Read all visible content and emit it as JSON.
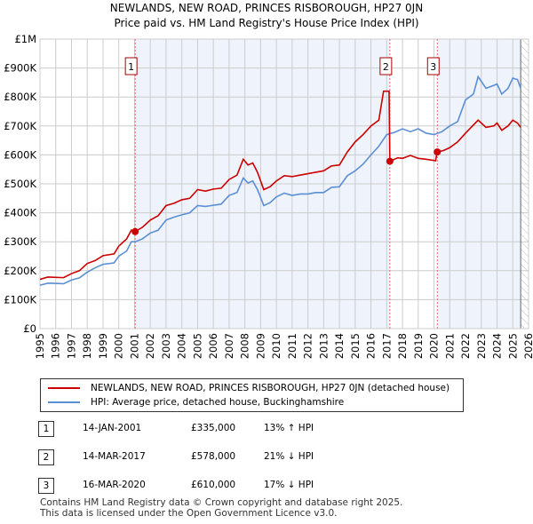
{
  "chart_data": {
    "type": "line",
    "title": "NEWLANDS, NEW ROAD, PRINCES RISBOROUGH, HP27 0JN",
    "subtitle": "Price paid vs. HM Land Registry's House Price Index (HPI)",
    "xlim": [
      1995,
      2026
    ],
    "ylim": [
      0,
      1000000
    ],
    "x_ticks": [
      "1995",
      "1996",
      "1997",
      "1998",
      "1999",
      "2000",
      "2001",
      "2002",
      "2003",
      "2004",
      "2005",
      "2006",
      "2007",
      "2008",
      "2009",
      "2010",
      "2011",
      "2012",
      "2013",
      "2014",
      "2015",
      "2016",
      "2017",
      "2018",
      "2019",
      "2020",
      "2021",
      "2022",
      "2023",
      "2024",
      "2025",
      "2026"
    ],
    "y_ticks": [
      {
        "v": 0,
        "label": "£0"
      },
      {
        "v": 100000,
        "label": "£100K"
      },
      {
        "v": 200000,
        "label": "£200K"
      },
      {
        "v": 300000,
        "label": "£300K"
      },
      {
        "v": 400000,
        "label": "£400K"
      },
      {
        "v": 500000,
        "label": "£500K"
      },
      {
        "v": 600000,
        "label": "£600K"
      },
      {
        "v": 700000,
        "label": "£700K"
      },
      {
        "v": 800000,
        "label": "£800K"
      },
      {
        "v": 900000,
        "label": "£900K"
      },
      {
        "v": 1000000,
        "label": "£1M"
      }
    ],
    "grid": true,
    "legend_placement": "below",
    "colors": {
      "property": "#cc0000",
      "hpi": "#5b8fd4",
      "shade": "#eef3fc"
    },
    "series": [
      {
        "name": "NEWLANDS, NEW ROAD, PRINCES RISBOROUGH, HP27 0JN (detached house)",
        "color": "#cc0000",
        "points": [
          [
            1995,
            170
          ],
          [
            1995.5,
            178
          ],
          [
            1996.5,
            176
          ],
          [
            1997,
            190
          ],
          [
            1997.5,
            200
          ],
          [
            1998,
            225
          ],
          [
            1998.5,
            235
          ],
          [
            1999,
            252
          ],
          [
            1999.7,
            258
          ],
          [
            2000,
            285
          ],
          [
            2000.5,
            310
          ],
          [
            2000.8,
            340
          ],
          [
            2001.04,
            335
          ],
          [
            2001.5,
            350
          ],
          [
            2002,
            375
          ],
          [
            2002.5,
            390
          ],
          [
            2003,
            425
          ],
          [
            2003.5,
            433
          ],
          [
            2004,
            445
          ],
          [
            2004.5,
            450
          ],
          [
            2005,
            480
          ],
          [
            2005.5,
            475
          ],
          [
            2006,
            482
          ],
          [
            2006.5,
            485
          ],
          [
            2007,
            515
          ],
          [
            2007.5,
            530
          ],
          [
            2007.9,
            585
          ],
          [
            2008.2,
            565
          ],
          [
            2008.5,
            572
          ],
          [
            2008.8,
            540
          ],
          [
            2009.2,
            480
          ],
          [
            2009.6,
            490
          ],
          [
            2010,
            510
          ],
          [
            2010.5,
            528
          ],
          [
            2011,
            525
          ],
          [
            2011.5,
            530
          ],
          [
            2012,
            535
          ],
          [
            2012.5,
            540
          ],
          [
            2013,
            545
          ],
          [
            2013.5,
            562
          ],
          [
            2014,
            565
          ],
          [
            2014.5,
            610
          ],
          [
            2015,
            645
          ],
          [
            2015.5,
            670
          ],
          [
            2016,
            700
          ],
          [
            2016.5,
            720
          ],
          [
            2016.8,
            820
          ],
          [
            2017.15,
            820
          ],
          [
            2017.2,
            578
          ],
          [
            2017.7,
            590
          ],
          [
            2018,
            588
          ],
          [
            2018.5,
            598
          ],
          [
            2019,
            588
          ],
          [
            2019.5,
            585
          ],
          [
            2020.1,
            580
          ],
          [
            2020.2,
            610
          ],
          [
            2020.6,
            615
          ],
          [
            2021,
            625
          ],
          [
            2021.5,
            645
          ],
          [
            2022,
            675
          ],
          [
            2022.8,
            720
          ],
          [
            2023.3,
            695
          ],
          [
            2023.8,
            700
          ],
          [
            2024,
            710
          ],
          [
            2024.3,
            685
          ],
          [
            2024.7,
            700
          ],
          [
            2025,
            720
          ],
          [
            2025.3,
            710
          ],
          [
            2025.5,
            695
          ]
        ]
      },
      {
        "name": "HPI: Average price, detached house, Buckinghamshire",
        "color": "#5b8fd4",
        "points": [
          [
            1995,
            150
          ],
          [
            1995.5,
            157
          ],
          [
            1996.5,
            155
          ],
          [
            1997,
            168
          ],
          [
            1997.5,
            175
          ],
          [
            1998,
            195
          ],
          [
            1998.5,
            210
          ],
          [
            1999,
            222
          ],
          [
            1999.7,
            227
          ],
          [
            2000,
            250
          ],
          [
            2000.5,
            268
          ],
          [
            2000.8,
            300
          ],
          [
            2001.04,
            300
          ],
          [
            2001.5,
            310
          ],
          [
            2002,
            330
          ],
          [
            2002.5,
            340
          ],
          [
            2003,
            375
          ],
          [
            2003.5,
            385
          ],
          [
            2004,
            393
          ],
          [
            2004.5,
            400
          ],
          [
            2005,
            425
          ],
          [
            2005.5,
            422
          ],
          [
            2006,
            426
          ],
          [
            2006.5,
            430
          ],
          [
            2007,
            460
          ],
          [
            2007.5,
            470
          ],
          [
            2007.9,
            520
          ],
          [
            2008.2,
            503
          ],
          [
            2008.5,
            510
          ],
          [
            2008.8,
            480
          ],
          [
            2009.2,
            425
          ],
          [
            2009.6,
            435
          ],
          [
            2010,
            455
          ],
          [
            2010.5,
            468
          ],
          [
            2011,
            460
          ],
          [
            2011.5,
            465
          ],
          [
            2012,
            465
          ],
          [
            2012.5,
            470
          ],
          [
            2013,
            470
          ],
          [
            2013.5,
            488
          ],
          [
            2014,
            490
          ],
          [
            2014.5,
            528
          ],
          [
            2015,
            545
          ],
          [
            2015.5,
            568
          ],
          [
            2016,
            600
          ],
          [
            2016.5,
            630
          ],
          [
            2017,
            670
          ],
          [
            2017.5,
            678
          ],
          [
            2018,
            690
          ],
          [
            2018.5,
            680
          ],
          [
            2019,
            690
          ],
          [
            2019.5,
            675
          ],
          [
            2020,
            670
          ],
          [
            2020.5,
            680
          ],
          [
            2021,
            700
          ],
          [
            2021.5,
            715
          ],
          [
            2022,
            790
          ],
          [
            2022.5,
            810
          ],
          [
            2022.8,
            870
          ],
          [
            2023.3,
            830
          ],
          [
            2023.8,
            840
          ],
          [
            2024,
            845
          ],
          [
            2024.3,
            810
          ],
          [
            2024.7,
            830
          ],
          [
            2025,
            865
          ],
          [
            2025.3,
            860
          ],
          [
            2025.5,
            830
          ]
        ]
      }
    ],
    "y_units": "thousands GBP",
    "sales": [
      {
        "id": "1",
        "x": 2001.04,
        "value": 335
      },
      {
        "id": "2",
        "x": 2017.2,
        "value": 578
      },
      {
        "id": "3",
        "x": 2020.21,
        "value": 610
      }
    ],
    "data_end": 2025.5
  },
  "legend": {
    "property": "NEWLANDS, NEW ROAD, PRINCES RISBOROUGH, HP27 0JN (detached house)",
    "hpi": "HPI: Average price, detached house, Buckinghamshire"
  },
  "table": [
    {
      "num": "1",
      "date": "14-JAN-2001",
      "price": "£335,000",
      "hpi": "13% ↑ HPI"
    },
    {
      "num": "2",
      "date": "14-MAR-2017",
      "price": "£578,000",
      "hpi": "21% ↓ HPI"
    },
    {
      "num": "3",
      "date": "16-MAR-2020",
      "price": "£610,000",
      "hpi": "17% ↓ HPI"
    }
  ],
  "footer": {
    "line1": "Contains HM Land Registry data © Crown copyright and database right 2025.",
    "line2": "This data is licensed under the Open Government Licence v3.0."
  }
}
